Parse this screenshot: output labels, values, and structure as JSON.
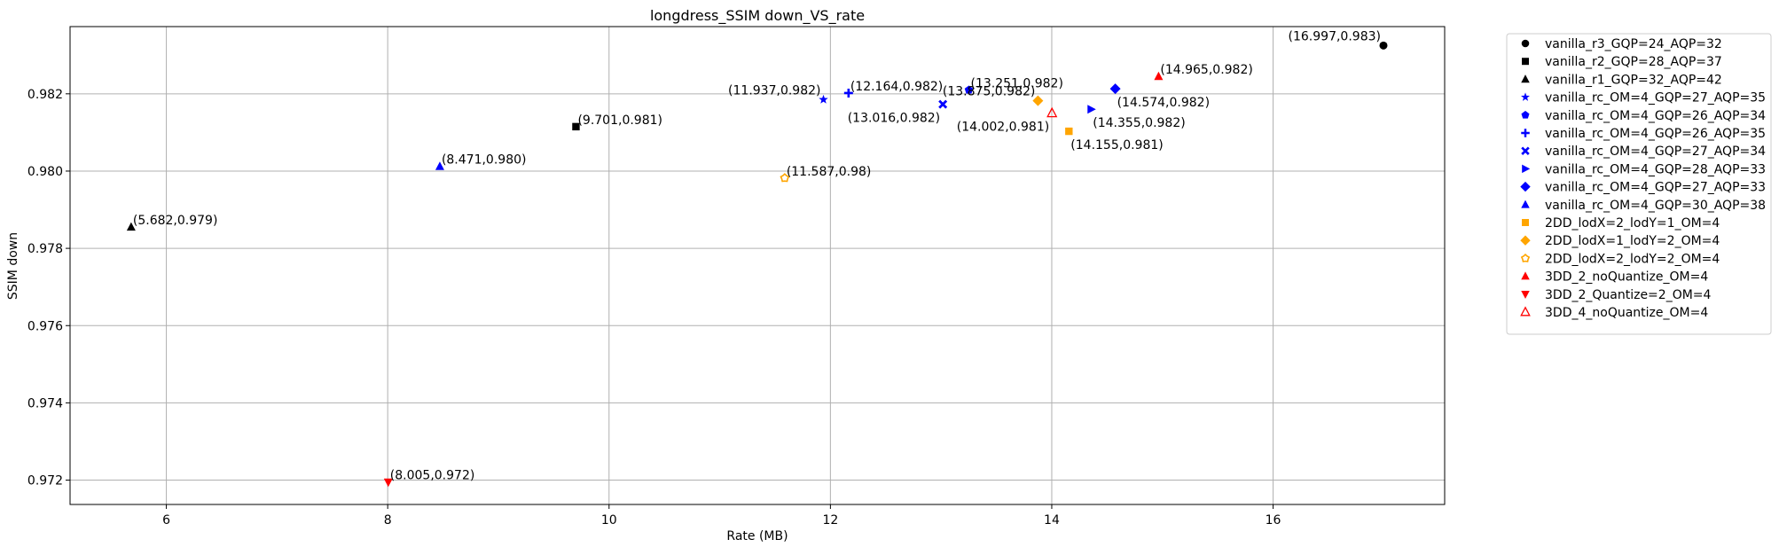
{
  "chart_data": {
    "type": "scatter",
    "title": "longdress_SSIM down_VS_rate",
    "xlabel": "Rate (MB)",
    "ylabel": "SSIM down",
    "xlim": [
      5.13,
      17.55
    ],
    "ylim": [
      0.97137,
      0.98374
    ],
    "xticks": [
      6,
      8,
      10,
      12,
      14,
      16
    ],
    "yticks": [
      0.972,
      0.974,
      0.976,
      0.978,
      0.98,
      0.982
    ],
    "ytick_labels": [
      "0.972",
      "0.974",
      "0.976",
      "0.978",
      "0.980",
      "0.982"
    ],
    "grid": true,
    "legend_position": "outside-right",
    "series": [
      {
        "name": "vanilla_r3_GQP=24_AQP=32",
        "marker": "circle",
        "color": "#000000",
        "points": [
          {
            "x": 16.997,
            "y": 0.98325,
            "label": "(16.997,0.983)",
            "anchor": "end"
          }
        ]
      },
      {
        "name": "vanilla_r2_GQP=28_AQP=37",
        "marker": "square",
        "color": "#000000",
        "points": [
          {
            "x": 9.701,
            "y": 0.98115,
            "label": "(9.701,0.981)",
            "anchor": "start"
          }
        ]
      },
      {
        "name": "vanilla_r1_GQP=32_AQP=42",
        "marker": "triangle-up",
        "color": "#000000",
        "points": [
          {
            "x": 5.682,
            "y": 0.97855,
            "label": "(5.682,0.979)",
            "anchor": "start"
          }
        ]
      },
      {
        "name": "vanilla_rc_OM=4_GQP=27_AQP=35",
        "marker": "star",
        "color": "#0000ff",
        "points": [
          {
            "x": 11.937,
            "y": 0.98185,
            "label": "(11.937,0.982)",
            "anchor": "end"
          }
        ]
      },
      {
        "name": "vanilla_rc_OM=4_GQP=26_AQP=34",
        "marker": "pentagon",
        "color": "#0000ff",
        "points": [
          {
            "x": 13.251,
            "y": 0.9821,
            "label": "(13.251,0.982)",
            "anchor": "start"
          }
        ]
      },
      {
        "name": "vanilla_rc_OM=4_GQP=26_AQP=35",
        "marker": "plus",
        "color": "#0000ff",
        "points": [
          {
            "x": 12.164,
            "y": 0.98202,
            "label": "(12.164,0.982)",
            "anchor": "start"
          }
        ]
      },
      {
        "name": "vanilla_rc_OM=4_GQP=27_AQP=34",
        "marker": "x",
        "color": "#0000ff",
        "points": [
          {
            "x": 13.016,
            "y": 0.98173,
            "label": "(13.016,0.982)",
            "anchor": "end-below"
          }
        ]
      },
      {
        "name": "vanilla_rc_OM=4_GQP=28_AQP=33",
        "marker": "triangle-right",
        "color": "#0000ff",
        "points": [
          {
            "x": 14.355,
            "y": 0.9816,
            "label": "(14.355,0.982)",
            "anchor": "start-below"
          }
        ]
      },
      {
        "name": "vanilla_rc_OM=4_GQP=27_AQP=33",
        "marker": "diamond",
        "color": "#0000ff",
        "points": [
          {
            "x": 14.574,
            "y": 0.98213,
            "label": "(14.574,0.982)",
            "anchor": "start-below"
          }
        ]
      },
      {
        "name": "vanilla_rc_OM=4_GQP=30_AQP=38",
        "marker": "triangle-up",
        "color": "#0000ff",
        "points": [
          {
            "x": 8.471,
            "y": 0.98012,
            "label": "(8.471,0.980)",
            "anchor": "start"
          }
        ]
      },
      {
        "name": "2DD_lodX=2_lodY=1_OM=4",
        "marker": "square",
        "color": "#ffa500",
        "points": [
          {
            "x": 14.155,
            "y": 0.98103,
            "label": "(14.155,0.981)",
            "anchor": "start-below"
          }
        ]
      },
      {
        "name": "2DD_lodX=1_lodY=2_OM=4",
        "marker": "diamond",
        "color": "#ffa500",
        "points": [
          {
            "x": 13.875,
            "y": 0.98182,
            "label": "(13.875,0.982)",
            "anchor": "end"
          }
        ]
      },
      {
        "name": "2DD_lodX=2_lodY=2_OM=4",
        "marker": "sun",
        "color": "#ffa500",
        "points": [
          {
            "x": 11.587,
            "y": 0.97982,
            "label": "(11.587,0.98)",
            "anchor": "start"
          }
        ]
      },
      {
        "name": "3DD_2_noQuantize_OM=4",
        "marker": "triangle-up",
        "color": "#ff0000",
        "points": [
          {
            "x": 14.965,
            "y": 0.98245,
            "label": "(14.965,0.982)",
            "anchor": "start"
          }
        ]
      },
      {
        "name": "3DD_2_Quantize=2_OM=4",
        "marker": "triangle-down",
        "color": "#ff0000",
        "points": [
          {
            "x": 8.005,
            "y": 0.97195,
            "label": "(8.005,0.972)",
            "anchor": "start"
          }
        ]
      },
      {
        "name": "3DD_4_noQuantize_OM=4",
        "marker": "triangle-up-open",
        "color": "#ff0000",
        "points": [
          {
            "x": 14.002,
            "y": 0.9815,
            "label": "(14.002,0.981)",
            "anchor": "end-below"
          }
        ]
      }
    ]
  }
}
